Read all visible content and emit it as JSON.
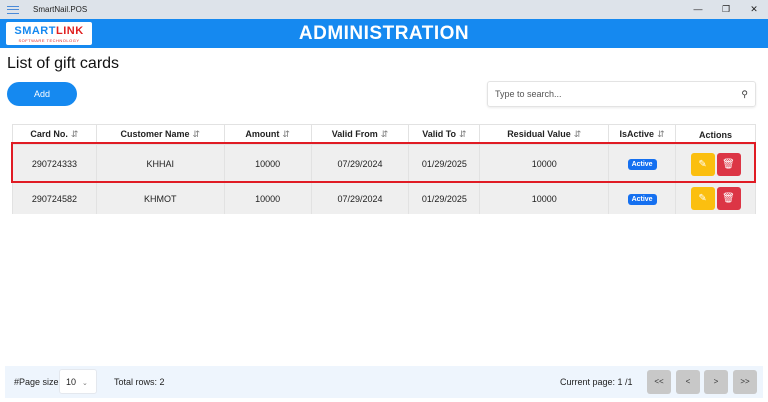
{
  "window": {
    "title": "SmartNail.POS",
    "minimize": "—",
    "restore": "❐",
    "close": "✕"
  },
  "header": {
    "logo_main": "SMART",
    "logo_accent": "LINK",
    "logo_sub": "SOFTWARE TECHNOLOGY",
    "title": "ADMINISTRATION"
  },
  "page": {
    "title": "List of gift cards",
    "add_label": "Add",
    "search_placeholder": "Type to search...",
    "search_icon": "search-icon"
  },
  "table": {
    "sort_icon": "⇵",
    "columns": [
      "Card No.",
      "Customer Name",
      "Amount",
      "Valid From",
      "Valid To",
      "Residual Value",
      "IsActive",
      "Actions"
    ],
    "rows": [
      {
        "card_no": "290724333",
        "customer": "KHHAI",
        "amount": "10000",
        "valid_from": "07/29/2024",
        "valid_to": "01/29/2025",
        "residual": "10000",
        "active": "Active"
      },
      {
        "card_no": "290724582",
        "customer": "KHMOT",
        "amount": "10000",
        "valid_from": "07/29/2024",
        "valid_to": "01/29/2025",
        "residual": "10000",
        "active": "Active"
      }
    ]
  },
  "footer": {
    "page_size_label": "#Page size",
    "page_size": "10",
    "total_rows": "Total rows: 2",
    "current_page": "Current page: 1 /1",
    "first": "<<",
    "prev": "<",
    "next": ">",
    "last": ">>"
  },
  "colors": {
    "accent": "#1589f0",
    "edit": "#fbbf0f",
    "delete": "#dc3545",
    "selection": "#e01b24"
  }
}
